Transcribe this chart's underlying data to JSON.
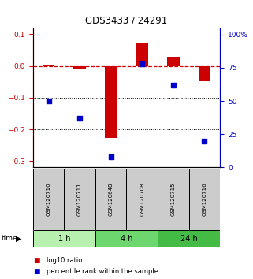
{
  "title": "GDS3433 / 24291",
  "samples": [
    "GSM120710",
    "GSM120711",
    "GSM120648",
    "GSM120708",
    "GSM120715",
    "GSM120716"
  ],
  "log10_ratio": [
    0.002,
    -0.012,
    -0.228,
    0.075,
    0.03,
    -0.048
  ],
  "percentile_rank": [
    50,
    37,
    8,
    78,
    62,
    20
  ],
  "time_groups": [
    {
      "label": "1 h",
      "start": 0,
      "end": 2,
      "color": "#b8f0b0"
    },
    {
      "label": "4 h",
      "start": 2,
      "end": 4,
      "color": "#6ed66e"
    },
    {
      "label": "24 h",
      "start": 4,
      "end": 6,
      "color": "#44bb44"
    }
  ],
  "left_ylim": [
    -0.32,
    0.12
  ],
  "right_ylim": [
    0,
    105
  ],
  "left_yticks": [
    -0.3,
    -0.2,
    -0.1,
    0.0,
    0.1
  ],
  "right_yticks": [
    0,
    25,
    50,
    75,
    100
  ],
  "right_yticklabels": [
    "0",
    "25",
    "50",
    "75",
    "100%"
  ],
  "bar_color": "#cc0000",
  "dot_color": "#0000cc",
  "bar_width": 0.4,
  "dot_size": 18,
  "ref_line_y": 0.0,
  "dotted_lines": [
    -0.1,
    -0.2
  ],
  "background_color": "#ffffff",
  "sample_box_color": "#cccccc",
  "legend_items": [
    {
      "color": "#cc0000",
      "label": "log10 ratio"
    },
    {
      "color": "#0000cc",
      "label": "percentile rank within the sample"
    }
  ]
}
